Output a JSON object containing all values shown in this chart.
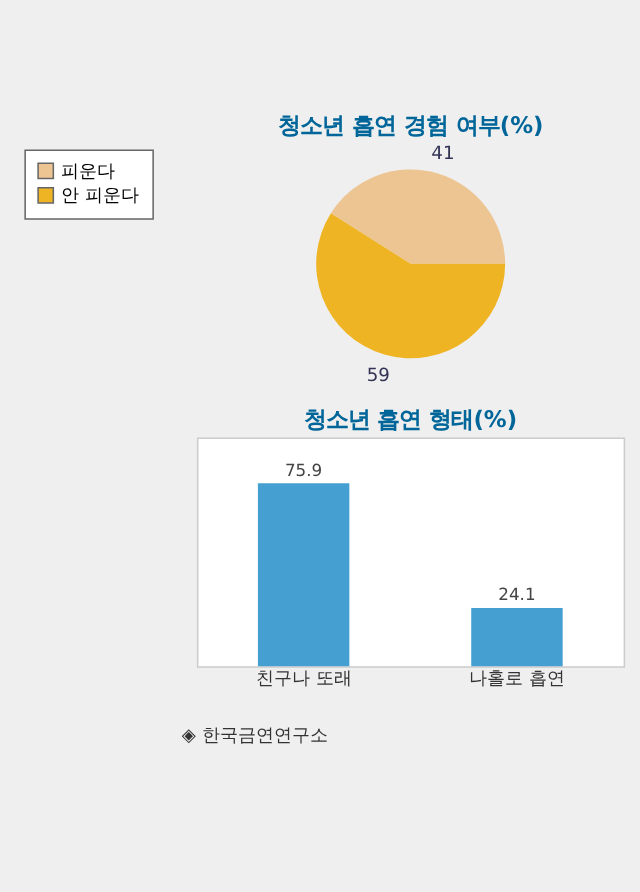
{
  "chart_data": [
    {
      "type": "pie",
      "title": "청소년 흡연 경험 여부(%)",
      "categories": [
        "피운다",
        "안 피운다"
      ],
      "values": [
        41,
        59
      ],
      "colors": [
        "#edc592",
        "#eeb423"
      ],
      "data_labels": true,
      "legend": "left"
    },
    {
      "type": "bar",
      "title": "청소년 흡연 형태(%)",
      "categories": [
        "친구나 또래",
        "나홀로 흡연"
      ],
      "values": [
        75.9,
        24.1
      ],
      "color": "#459fd0",
      "tick_labels": "x",
      "data_labels": true,
      "annotations": [
        "◈ 한국금연연구소"
      ]
    }
  ]
}
